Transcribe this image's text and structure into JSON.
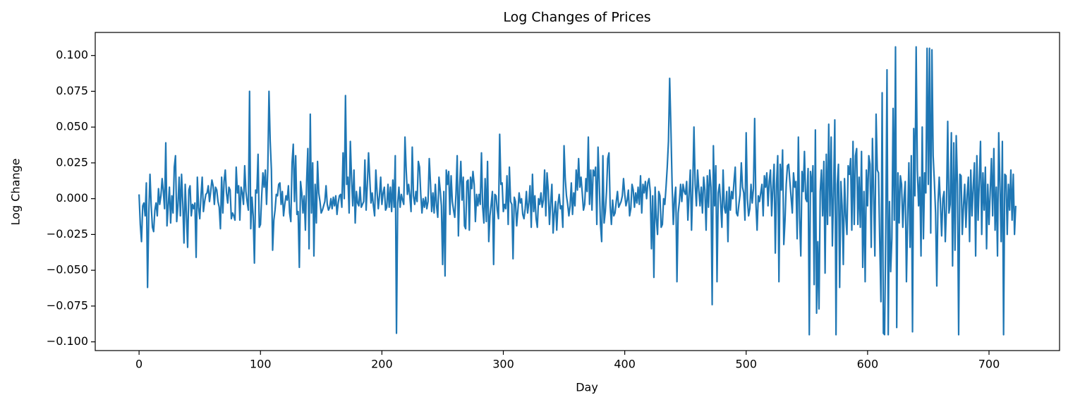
{
  "chart_data": {
    "type": "line",
    "title": "Log Changes of Prices",
    "xlabel": "Day",
    "ylabel": "Log Change",
    "color": "#1f77b4",
    "xlim": [
      -36.1,
      758.1
    ],
    "ylim": [
      -0.1061,
      0.1161
    ],
    "xticks": [
      0,
      100,
      200,
      300,
      400,
      500,
      600,
      700
    ],
    "yticks": [
      {
        "value": -0.1,
        "label": "−0.100"
      },
      {
        "value": -0.075,
        "label": "−0.075"
      },
      {
        "value": -0.05,
        "label": "−0.050"
      },
      {
        "value": -0.025,
        "label": "−0.025"
      },
      {
        "value": 0,
        "label": "0.000"
      },
      {
        "value": 0.025,
        "label": "0.025"
      },
      {
        "value": 0.05,
        "label": "0.050"
      },
      {
        "value": 0.075,
        "label": "0.075"
      },
      {
        "value": 0.1,
        "label": "0.100"
      }
    ],
    "grid": false,
    "x": [
      0,
      1,
      2,
      3,
      4,
      5,
      6,
      7,
      8,
      9,
      10,
      11,
      12,
      13,
      14,
      15,
      16,
      17,
      18,
      19,
      20,
      21,
      22,
      23,
      24,
      25,
      26,
      27,
      28,
      29,
      30,
      31,
      32,
      33,
      34,
      35,
      36,
      37,
      38,
      39,
      40,
      41,
      42,
      43,
      44,
      45,
      46,
      47,
      48,
      49,
      50,
      51,
      52,
      53,
      54,
      55,
      56,
      57,
      58,
      59,
      60,
      61,
      62,
      63,
      64,
      65,
      66,
      67,
      68,
      69,
      70,
      71,
      72,
      73,
      74,
      75,
      76,
      77,
      78,
      79,
      80,
      81,
      82,
      83,
      84,
      85,
      86,
      87,
      88,
      89,
      90,
      91,
      92,
      93,
      94,
      95,
      96,
      97,
      98,
      99,
      100,
      101,
      102,
      103,
      104,
      105,
      106,
      107,
      108,
      109,
      110,
      111,
      112,
      113,
      114,
      115,
      116,
      117,
      118,
      119,
      120,
      121,
      122,
      123,
      124,
      125,
      126,
      127,
      128,
      129,
      130,
      131,
      132,
      133,
      134,
      135,
      136,
      137,
      138,
      139,
      140,
      141,
      142,
      143,
      144,
      145,
      146,
      147,
      148,
      149,
      150,
      151,
      152,
      153,
      154,
      155,
      156,
      157,
      158,
      159,
      160,
      161,
      162,
      163,
      164,
      165,
      166,
      167,
      168,
      169,
      170,
      171,
      172,
      173,
      174,
      175,
      176,
      177,
      178,
      179,
      180,
      181,
      182,
      183,
      184,
      185,
      186,
      187,
      188,
      189,
      190,
      191,
      192,
      193,
      194,
      195,
      196,
      197,
      198,
      199,
      200,
      201,
      202,
      203,
      204,
      205,
      206,
      207,
      208,
      209,
      210,
      211,
      212,
      213,
      214,
      215,
      216,
      217,
      218,
      219,
      220,
      221,
      222,
      223,
      224,
      225,
      226,
      227,
      228,
      229,
      230,
      231,
      232,
      233,
      234,
      235,
      236,
      237,
      238,
      239,
      240,
      241,
      242,
      243,
      244,
      245,
      246,
      247,
      248,
      249,
      250,
      251,
      252,
      253,
      254,
      255,
      256,
      257,
      258,
      259,
      260,
      261,
      262,
      263,
      264,
      265,
      266,
      267,
      268,
      269,
      270,
      271,
      272,
      273,
      274,
      275,
      276,
      277,
      278,
      279,
      280,
      281,
      282,
      283,
      284,
      285,
      286,
      287,
      288,
      289,
      290,
      291,
      292,
      293,
      294,
      295,
      296,
      297,
      298,
      299,
      300,
      301,
      302,
      303,
      304,
      305,
      306,
      307,
      308,
      309,
      310,
      311,
      312,
      313,
      314,
      315,
      316,
      317,
      318,
      319,
      320,
      321,
      322,
      323,
      324,
      325,
      326,
      327,
      328,
      329,
      330,
      331,
      332,
      333,
      334,
      335,
      336,
      337,
      338,
      339,
      340,
      341,
      342,
      343,
      344,
      345,
      346,
      347,
      348,
      349,
      350,
      351,
      352,
      353,
      354,
      355,
      356,
      357,
      358,
      359,
      360,
      361,
      362,
      363,
      364,
      365,
      366,
      367,
      368,
      369,
      370,
      371,
      372,
      373,
      374,
      375,
      376,
      377,
      378,
      379,
      380,
      381,
      382,
      383,
      384,
      385,
      386,
      387,
      388,
      389,
      390,
      391,
      392,
      393,
      394,
      395,
      396,
      397,
      398,
      399,
      400,
      401,
      402,
      403,
      404,
      405,
      406,
      407,
      408,
      409,
      410,
      411,
      412,
      413,
      414,
      415,
      416,
      417,
      418,
      419,
      420,
      421,
      422,
      423,
      424,
      425,
      426,
      427,
      428,
      429,
      430,
      431,
      432,
      433,
      434,
      435,
      436,
      437,
      438,
      439,
      440,
      441,
      442,
      443,
      444,
      445,
      446,
      447,
      448,
      449,
      450,
      451,
      452,
      453,
      454,
      455,
      456,
      457,
      458,
      459,
      460,
      461,
      462,
      463,
      464,
      465,
      466,
      467,
      468,
      469,
      470,
      471,
      472,
      473,
      474,
      475,
      476,
      477,
      478,
      479,
      480,
      481,
      482,
      483,
      484,
      485,
      486,
      487,
      488,
      489,
      490,
      491,
      492,
      493,
      494,
      495,
      496,
      497,
      498,
      499,
      500,
      501,
      502,
      503,
      504,
      505,
      506,
      507,
      508,
      509,
      510,
      511,
      512,
      513,
      514,
      515,
      516,
      517,
      518,
      519,
      520,
      521,
      522,
      523,
      524,
      525,
      526,
      527,
      528,
      529,
      530,
      531,
      532,
      533,
      534,
      535,
      536,
      537,
      538,
      539,
      540,
      541,
      542,
      543,
      544,
      545,
      546,
      547,
      548,
      549,
      550,
      551,
      552,
      553,
      554,
      555,
      556,
      557,
      558,
      559,
      560,
      561,
      562,
      563,
      564,
      565,
      566,
      567,
      568,
      569,
      570,
      571,
      572,
      573,
      574,
      575,
      576,
      577,
      578,
      579,
      580,
      581,
      582,
      583,
      584,
      585,
      586,
      587,
      588,
      589,
      590,
      591,
      592,
      593,
      594,
      595,
      596,
      597,
      598,
      599,
      600,
      601,
      602,
      603,
      604,
      605,
      606,
      607,
      608,
      609,
      610,
      611,
      612,
      613,
      614,
      615,
      616,
      617,
      618,
      619,
      620,
      621,
      622,
      623,
      624,
      625,
      626,
      627,
      628,
      629,
      630,
      631,
      632,
      633,
      634,
      635,
      636,
      637,
      638,
      639,
      640,
      641,
      642,
      643,
      644,
      645,
      646,
      647,
      648,
      649,
      650,
      651,
      652,
      653,
      654,
      655,
      656,
      657,
      658,
      659,
      660,
      661,
      662,
      663,
      664,
      665,
      666,
      667,
      668,
      669,
      670,
      671,
      672,
      673,
      674,
      675,
      676,
      677,
      678,
      679,
      680,
      681,
      682,
      683,
      684,
      685,
      686,
      687,
      688,
      689,
      690,
      691,
      692,
      693,
      694,
      695,
      696,
      697,
      698,
      699,
      700,
      701,
      702,
      703,
      704,
      705,
      706,
      707,
      708,
      709,
      710,
      711,
      712,
      713,
      714,
      715,
      716,
      717,
      718,
      719,
      720,
      721,
      722
    ],
    "values": [
      0.003,
      -0.018,
      -0.03,
      -0.005,
      -0.003,
      -0.012,
      0.011,
      -0.062,
      -0.01,
      0.017,
      -0.005,
      -0.02,
      -0.023,
      -0.008,
      -0.003,
      -0.012,
      0.007,
      -0.004,
      0.002,
      0.014,
      0.005,
      -0.007,
      0.039,
      -0.019,
      -0.005,
      0.008,
      -0.017,
      0.002,
      -0.01,
      0.022,
      0.03,
      -0.016,
      -0.005,
      0.015,
      -0.012,
      0.017,
      -0.003,
      -0.031,
      0.01,
      -0.011,
      -0.034,
      0.006,
      0.009,
      -0.012,
      -0.004,
      -0.007,
      -0.003,
      -0.041,
      0.015,
      -0.006,
      -0.014,
      0.002,
      0.015,
      -0.009,
      -0.002,
      0.003,
      0.004,
      0.009,
      -0.002,
      0.005,
      0.013,
      0.009,
      -0.004,
      0.008,
      0.006,
      -0.002,
      -0.006,
      -0.021,
      0.015,
      -0.01,
      0.012,
      0.02,
      0.004,
      -0.003,
      0.008,
      0.006,
      -0.014,
      -0.01,
      -0.012,
      -0.015,
      0.022,
      0.004,
      0.009,
      -0.015,
      0.008,
      0.004,
      -0.004,
      0.023,
      0.005,
      -0.002,
      -0.008,
      0.075,
      -0.021,
      0.001,
      -0.012,
      -0.045,
      0.006,
      0.004,
      0.031,
      -0.02,
      -0.018,
      0.002,
      0.018,
      0.008,
      0.02,
      -0.004,
      0.02,
      0.075,
      0.04,
      0.02,
      -0.036,
      -0.015,
      -0.008,
      0.003,
      0.002,
      0.01,
      0.011,
      -0.004,
      0.005,
      -0.012,
      -0.004,
      0.002,
      -0.001,
      0.009,
      -0.01,
      -0.016,
      0.025,
      0.038,
      -0.002,
      0.03,
      -0.011,
      -0.009,
      -0.048,
      0.012,
      0.004,
      -0.01,
      0.002,
      -0.022,
      0.012,
      0.035,
      -0.035,
      0.059,
      -0.01,
      0.025,
      -0.04,
      0.01,
      -0.017,
      0.026,
      0.004,
      -0.002,
      -0.01,
      -0.008,
      -0.005,
      -0.002,
      0.009,
      -0.004,
      -0.008,
      -0.006,
      0.0,
      -0.007,
      0.001,
      -0.005,
      0.002,
      -0.011,
      -0.003,
      0.002,
      0.003,
      -0.006,
      0.032,
      0.0,
      0.072,
      0.01,
      0.015,
      -0.01,
      0.04,
      0.014,
      -0.005,
      0.02,
      -0.017,
      0.005,
      -0.003,
      -0.005,
      0.008,
      -0.006,
      -0.004,
      -0.002,
      0.027,
      -0.008,
      0.01,
      0.032,
      0.014,
      -0.003,
      0.004,
      -0.005,
      -0.012,
      0.02,
      0.005,
      -0.007,
      0.002,
      0.015,
      -0.004,
      0.004,
      0.008,
      -0.008,
      -0.006,
      0.01,
      -0.006,
      0.008,
      -0.009,
      0.013,
      -0.006,
      0.03,
      -0.094,
      -0.003,
      0.008,
      -0.006,
      0.003,
      -0.001,
      -0.004,
      0.043,
      0.02,
      0.003,
      0.01,
      0.002,
      -0.009,
      0.036,
      0.002,
      -0.004,
      0.005,
      -0.002,
      0.026,
      0.022,
      0.003,
      -0.01,
      0.0,
      -0.006,
      0.001,
      -0.007,
      -0.002,
      0.028,
      0.011,
      -0.009,
      0.004,
      -0.01,
      0.01,
      -0.005,
      -0.013,
      0.015,
      0.006,
      -0.005,
      -0.046,
      0.005,
      -0.054,
      0.02,
      0.01,
      0.019,
      -0.011,
      0.016,
      -0.002,
      -0.008,
      -0.013,
      0.003,
      0.03,
      -0.026,
      0.008,
      0.026,
      -0.001,
      0.015,
      -0.019,
      -0.021,
      0.012,
      0.013,
      -0.022,
      0.015,
      0.007,
      0.019,
      0.01,
      -0.016,
      0.003,
      -0.005,
      0.003,
      -0.004,
      0.032,
      -0.006,
      -0.017,
      0.014,
      -0.016,
      0.026,
      -0.03,
      -0.012,
      -0.004,
      0.005,
      -0.046,
      0.003,
      0.002,
      -0.008,
      -0.014,
      0.045,
      0.01,
      0.011,
      -0.009,
      -0.004,
      -0.007,
      0.016,
      -0.018,
      0.022,
      -0.002,
      -0.004,
      -0.042,
      0.001,
      -0.002,
      -0.019,
      -0.008,
      0.004,
      -0.003,
      0.0,
      -0.011,
      -0.014,
      -0.007,
      0.005,
      -0.01,
      -0.003,
      0.009,
      -0.02,
      0.017,
      -0.009,
      0.002,
      -0.014,
      -0.02,
      0.0,
      -0.004,
      0.004,
      -0.006,
      -0.001,
      0.02,
      -0.012,
      0.018,
      0.006,
      -0.018,
      -0.003,
      0.01,
      -0.024,
      -0.01,
      -0.002,
      -0.022,
      -0.004,
      0.003,
      -0.007,
      -0.005,
      -0.02,
      0.037,
      0.014,
      0.002,
      -0.004,
      -0.012,
      -0.005,
      0.011,
      -0.011,
      0.004,
      -0.005,
      0.02,
      0.006,
      0.028,
      0.008,
      0.015,
      0.004,
      -0.008,
      -0.004,
      0.014,
      0.005,
      0.043,
      -0.004,
      0.02,
      -0.008,
      0.02,
      0.016,
      0.022,
      -0.018,
      0.036,
      0.012,
      -0.018,
      -0.03,
      0.03,
      -0.017,
      -0.009,
      0.005,
      0.028,
      0.032,
      -0.005,
      -0.018,
      -0.001,
      -0.012,
      -0.01,
      -0.002,
      0.005,
      -0.006,
      -0.004,
      -0.002,
      0.002,
      0.014,
      0.003,
      -0.005,
      -0.001,
      0.006,
      -0.012,
      -0.007,
      0.01,
      0.006,
      -0.006,
      0.004,
      -0.003,
      0.008,
      -0.004,
      0.016,
      -0.01,
      0.01,
      0.004,
      0.012,
      0.0,
      0.011,
      0.014,
      0.005,
      -0.035,
      0.002,
      -0.055,
      0.008,
      -0.014,
      -0.025,
      0.005,
      0.002,
      -0.02,
      -0.018,
      0.0,
      -0.004,
      0.008,
      0.022,
      0.04,
      0.084,
      0.05,
      0.01,
      -0.018,
      0.0,
      0.008,
      -0.058,
      -0.01,
      -0.002,
      0.01,
      -0.002,
      0.01,
      0.005,
      0.003,
      0.012,
      -0.015,
      0.004,
      0.02,
      -0.022,
      0.008,
      0.05,
      0.01,
      -0.005,
      0.02,
      0.006,
      -0.005,
      0.008,
      -0.01,
      0.015,
      0.006,
      -0.022,
      0.016,
      -0.006,
      0.02,
      0.008,
      -0.074,
      0.037,
      -0.005,
      0.023,
      -0.058,
      0.004,
      0.01,
      -0.004,
      -0.02,
      0.02,
      -0.006,
      -0.01,
      0.005,
      -0.03,
      0.008,
      -0.008,
      0.005,
      0.0,
      0.012,
      0.022,
      -0.01,
      -0.012,
      -0.004,
      0.003,
      0.025,
      0.008,
      0.004,
      -0.015,
      0.046,
      0.0,
      -0.012,
      -0.007,
      0.01,
      -0.003,
      0.007,
      0.056,
      -0.003,
      -0.022,
      0.002,
      -0.002,
      0.004,
      0.01,
      -0.012,
      0.016,
      0.008,
      0.018,
      -0.005,
      0.012,
      0.02,
      -0.012,
      0.008,
      0.024,
      -0.038,
      0.01,
      0.03,
      -0.058,
      0.024,
      0.006,
      0.034,
      -0.032,
      -0.015,
      0.01,
      0.023,
      0.024,
      0.012,
      0.001,
      -0.01,
      0.018,
      0.008,
      0.012,
      -0.028,
      0.043,
      -0.013,
      -0.04,
      0.019,
      0.005,
      0.033,
      0.0,
      -0.002,
      0.021,
      -0.095,
      0.019,
      0.005,
      0.023,
      -0.06,
      0.048,
      -0.08,
      -0.03,
      -0.077,
      0.005,
      0.02,
      -0.012,
      0.026,
      -0.052,
      0.031,
      -0.018,
      0.052,
      -0.012,
      0.043,
      -0.033,
      0.005,
      0.055,
      -0.095,
      0.01,
      0.024,
      -0.062,
      0.012,
      -0.005,
      -0.046,
      0.014,
      -0.012,
      -0.025,
      0.023,
      0.017,
      0.028,
      -0.022,
      0.04,
      -0.018,
      0.03,
      0.035,
      -0.018,
      0.015,
      -0.02,
      0.033,
      -0.048,
      0.005,
      -0.058,
      0.02,
      -0.005,
      0.03,
      0.024,
      -0.034,
      0.042,
      0.002,
      -0.04,
      0.059,
      0.02,
      0.018,
      -0.03,
      -0.072,
      0.074,
      -0.094,
      -0.095,
      -0.02,
      0.09,
      -0.095,
      -0.002,
      -0.051,
      -0.028,
      0.063,
      -0.015,
      0.106,
      -0.09,
      0.018,
      -0.017,
      0.016,
      0.01,
      -0.02,
      0.0,
      0.012,
      -0.058,
      -0.014,
      0.025,
      -0.034,
      0.03,
      -0.093,
      0.049,
      0.002,
      0.106,
      0.02,
      -0.005,
      0.015,
      -0.04,
      0.05,
      -0.028,
      0.018,
      0.004,
      0.105,
      0.01,
      0.105,
      -0.024,
      0.104,
      0.03,
      0.012,
      -0.01,
      -0.061,
      -0.003,
      0.015,
      -0.004,
      -0.026,
      0.0,
      0.005,
      -0.03,
      -0.005,
      0.054,
      -0.01,
      -0.004,
      0.046,
      -0.047,
      0.039,
      -0.036,
      0.044,
      0.01,
      -0.095,
      0.017,
      0.016,
      -0.025,
      -0.005,
      0.01,
      -0.02,
      0.003,
      0.015,
      -0.03,
      0.02,
      -0.012,
      0.008,
      0.025,
      -0.04,
      0.03,
      -0.015,
      0.012,
      0.04,
      -0.025,
      0.018,
      -0.008,
      0.022,
      -0.035,
      0.01,
      -0.018,
      0.005,
      0.028,
      -0.012,
      0.035,
      -0.022,
      0.008,
      -0.04,
      0.046,
      0.01,
      -0.03,
      0.04,
      -0.095,
      0.017,
      0.016,
      -0.025,
      0.01,
      -0.008,
      0.02,
      -0.015,
      0.017,
      -0.025,
      -0.005
    ]
  }
}
